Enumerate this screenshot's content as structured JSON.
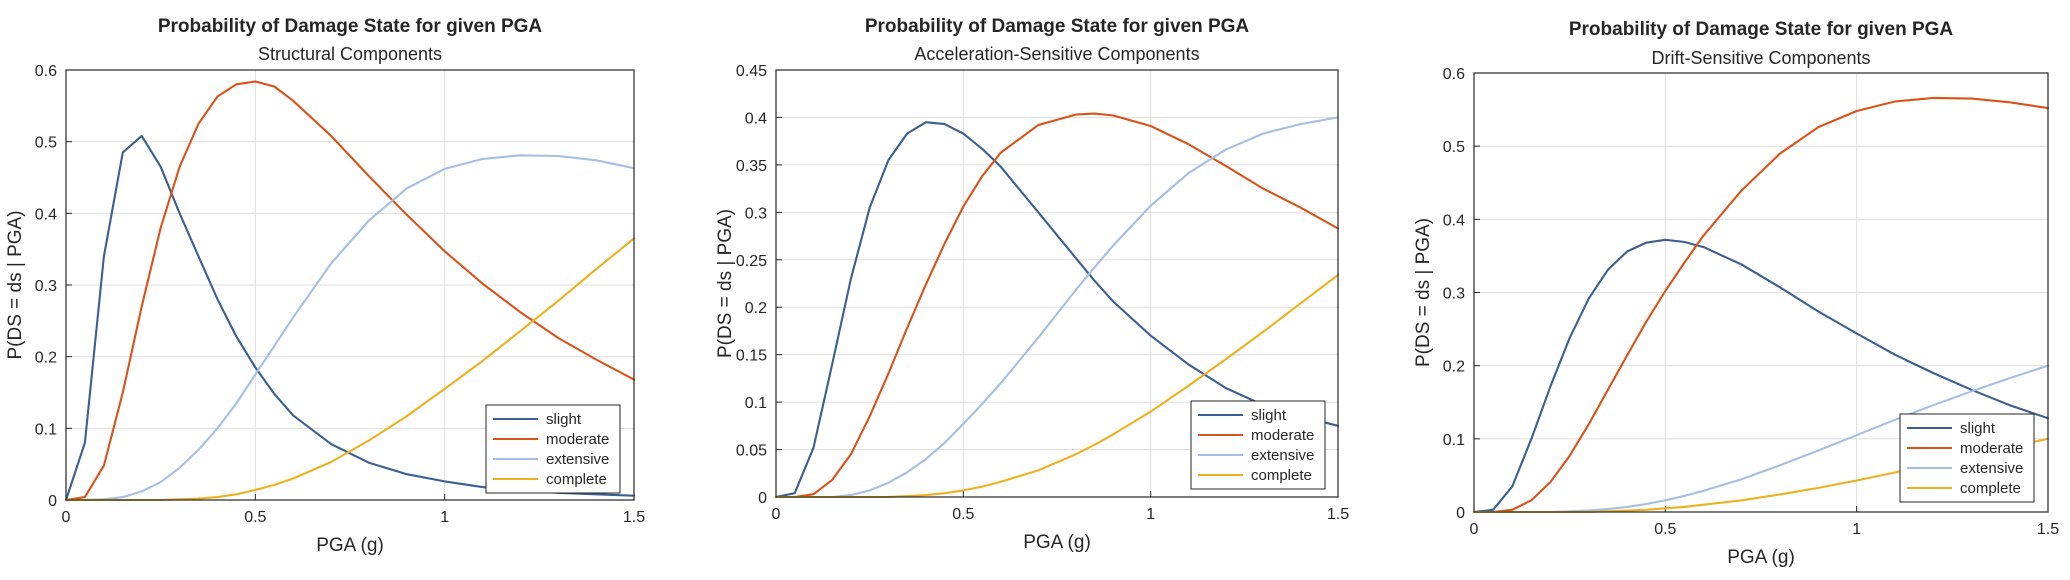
{
  "colors": {
    "slight": "#3a5f93",
    "moderate": "#d95319",
    "extensive": "#a4bfe3",
    "complete": "#edb120"
  },
  "chart_data": [
    {
      "type": "line",
      "title": "Probability of Damage State for given PGA",
      "subtitle": "Structural Components",
      "xlabel": "PGA (g)",
      "ylabel": "P(DS = ds | PGA)",
      "xlim": [
        0,
        1.5
      ],
      "ylim": [
        0,
        0.6
      ],
      "xticks": [
        "0",
        "0.5",
        "1",
        "1.5"
      ],
      "yticks": [
        "0",
        "0.1",
        "0.2",
        "0.3",
        "0.4",
        "0.5",
        "0.6"
      ],
      "grid": true,
      "legend_position": "bottom-right",
      "x": [
        0,
        0.05,
        0.1,
        0.15,
        0.2,
        0.25,
        0.3,
        0.35,
        0.4,
        0.45,
        0.5,
        0.55,
        0.6,
        0.7,
        0.8,
        0.9,
        1.0,
        1.1,
        1.2,
        1.3,
        1.4,
        1.5
      ],
      "series": [
        {
          "name": "slight",
          "values": [
            0,
            0.08,
            0.34,
            0.485,
            0.508,
            0.465,
            0.4,
            0.34,
            0.28,
            0.228,
            0.185,
            0.148,
            0.118,
            0.078,
            0.052,
            0.036,
            0.026,
            0.018,
            0.013,
            0.01,
            0.008,
            0.006
          ]
        },
        {
          "name": "moderate",
          "values": [
            0,
            0.004,
            0.048,
            0.15,
            0.27,
            0.38,
            0.465,
            0.525,
            0.563,
            0.58,
            0.584,
            0.577,
            0.557,
            0.508,
            0.452,
            0.398,
            0.347,
            0.302,
            0.262,
            0.226,
            0.196,
            0.168
          ]
        },
        {
          "name": "extensive",
          "values": [
            0,
            0,
            0.001,
            0.004,
            0.012,
            0.025,
            0.045,
            0.07,
            0.1,
            0.135,
            0.175,
            0.215,
            0.255,
            0.33,
            0.39,
            0.435,
            0.462,
            0.476,
            0.481,
            0.48,
            0.474,
            0.463
          ]
        },
        {
          "name": "complete",
          "values": [
            0,
            0,
            0,
            0,
            0,
            0,
            0.001,
            0.002,
            0.004,
            0.008,
            0.014,
            0.021,
            0.03,
            0.053,
            0.083,
            0.117,
            0.155,
            0.194,
            0.236,
            0.278,
            0.322,
            0.365
          ]
        }
      ]
    },
    {
      "type": "line",
      "title": "Probability of Damage State for given PGA",
      "subtitle": "Acceleration-Sensitive Components",
      "xlabel": "PGA (g)",
      "ylabel": "P(DS = ds | PGA)",
      "xlim": [
        0,
        1.5
      ],
      "ylim": [
        0,
        0.45
      ],
      "xticks": [
        "0",
        "0.5",
        "1",
        "1.5"
      ],
      "yticks": [
        "0",
        "0.05",
        "0.1",
        "0.15",
        "0.2",
        "0.25",
        "0.3",
        "0.35",
        "0.4",
        "0.45"
      ],
      "grid": true,
      "legend_position": "bottom-right",
      "x": [
        0,
        0.05,
        0.1,
        0.15,
        0.2,
        0.25,
        0.3,
        0.35,
        0.4,
        0.45,
        0.5,
        0.55,
        0.6,
        0.7,
        0.8,
        0.85,
        0.9,
        1.0,
        1.1,
        1.2,
        1.3,
        1.4,
        1.5
      ],
      "series": [
        {
          "name": "slight",
          "values": [
            0,
            0.004,
            0.052,
            0.14,
            0.23,
            0.305,
            0.355,
            0.383,
            0.395,
            0.393,
            0.383,
            0.367,
            0.348,
            0.3,
            0.252,
            0.228,
            0.206,
            0.17,
            0.14,
            0.115,
            0.097,
            0.085,
            0.075
          ]
        },
        {
          "name": "moderate",
          "values": [
            0,
            0,
            0.003,
            0.018,
            0.045,
            0.085,
            0.13,
            0.178,
            0.224,
            0.267,
            0.306,
            0.338,
            0.363,
            0.392,
            0.403,
            0.404,
            0.402,
            0.391,
            0.372,
            0.349,
            0.325,
            0.305,
            0.283
          ]
        },
        {
          "name": "extensive",
          "values": [
            0,
            0,
            0,
            0,
            0.002,
            0.007,
            0.015,
            0.026,
            0.04,
            0.057,
            0.077,
            0.098,
            0.12,
            0.168,
            0.218,
            0.242,
            0.265,
            0.307,
            0.341,
            0.366,
            0.383,
            0.393,
            0.4
          ]
        },
        {
          "name": "complete",
          "values": [
            0,
            0,
            0,
            0,
            0,
            0,
            0,
            0.001,
            0.002,
            0.004,
            0.007,
            0.011,
            0.016,
            0.028,
            0.045,
            0.055,
            0.066,
            0.09,
            0.117,
            0.145,
            0.174,
            0.204,
            0.234
          ]
        }
      ]
    },
    {
      "type": "line",
      "title": "Probability of Damage State for given PGA",
      "subtitle": "Drift-Sensitive Components",
      "xlabel": "PGA (g)",
      "ylabel": "P(DS = ds | PGA)",
      "xlim": [
        0,
        1.5
      ],
      "ylim": [
        0,
        0.6
      ],
      "xticks": [
        "0",
        "0.5",
        "1",
        "1.5"
      ],
      "yticks": [
        "0",
        "0.1",
        "0.2",
        "0.3",
        "0.4",
        "0.5",
        "0.6"
      ],
      "grid": true,
      "legend_position": "bottom-right",
      "x": [
        0,
        0.05,
        0.1,
        0.15,
        0.2,
        0.25,
        0.3,
        0.35,
        0.4,
        0.45,
        0.5,
        0.55,
        0.6,
        0.7,
        0.8,
        0.9,
        1.0,
        1.1,
        1.2,
        1.3,
        1.4,
        1.5
      ],
      "series": [
        {
          "name": "slight",
          "values": [
            0,
            0.003,
            0.035,
            0.1,
            0.172,
            0.238,
            0.292,
            0.331,
            0.356,
            0.368,
            0.372,
            0.369,
            0.362,
            0.338,
            0.307,
            0.274,
            0.244,
            0.215,
            0.19,
            0.167,
            0.146,
            0.128
          ]
        },
        {
          "name": "moderate",
          "values": [
            0,
            0,
            0.003,
            0.016,
            0.041,
            0.077,
            0.12,
            0.167,
            0.214,
            0.26,
            0.302,
            0.341,
            0.378,
            0.44,
            0.49,
            0.526,
            0.548,
            0.561,
            0.566,
            0.565,
            0.56,
            0.552
          ]
        },
        {
          "name": "extensive",
          "values": [
            0,
            0,
            0,
            0,
            0,
            0.001,
            0.002,
            0.004,
            0.007,
            0.011,
            0.016,
            0.022,
            0.029,
            0.045,
            0.064,
            0.084,
            0.105,
            0.126,
            0.146,
            0.165,
            0.183,
            0.2
          ]
        },
        {
          "name": "complete",
          "values": [
            0,
            0,
            0,
            0,
            0,
            0,
            0,
            0.001,
            0.002,
            0.003,
            0.005,
            0.007,
            0.01,
            0.016,
            0.024,
            0.033,
            0.043,
            0.054,
            0.066,
            0.077,
            0.089,
            0.1
          ]
        }
      ]
    }
  ]
}
